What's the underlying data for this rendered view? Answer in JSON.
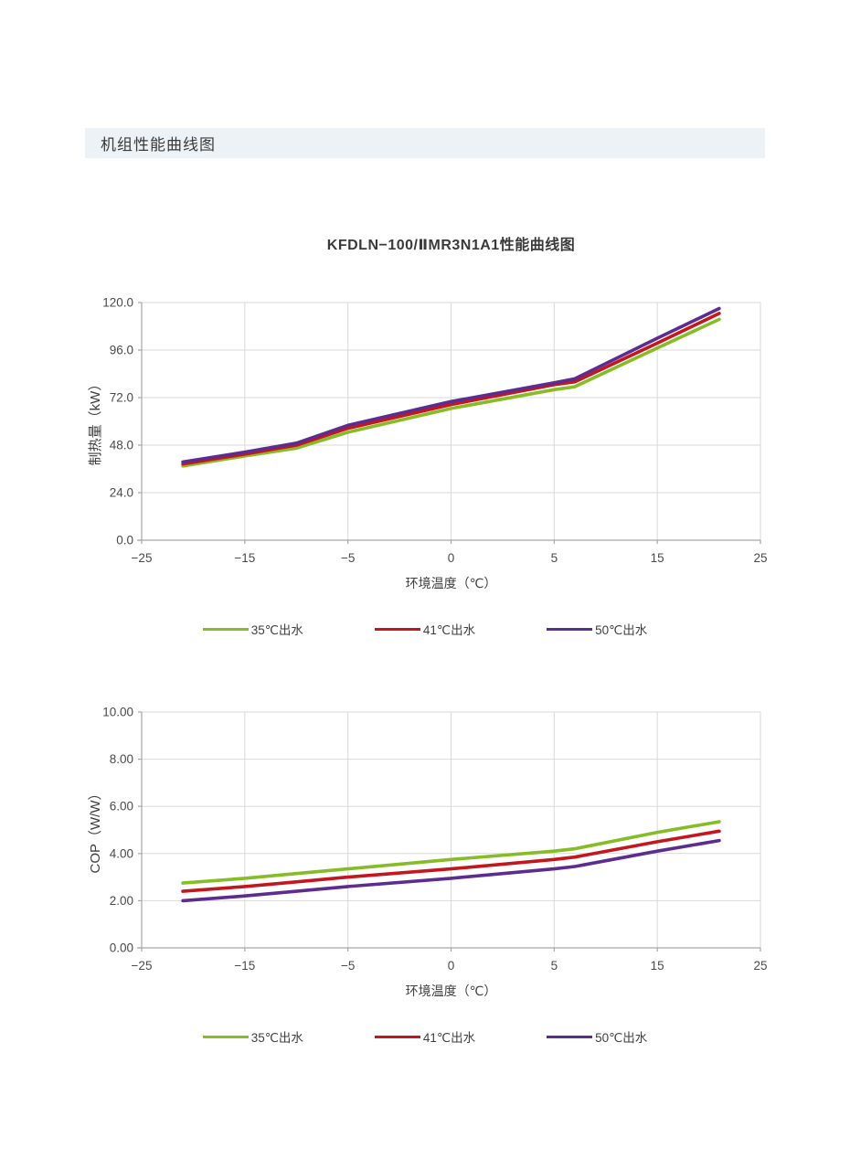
{
  "header": {
    "title": "机组性能曲线图"
  },
  "title": "KFDLN−100/ⅡMR3N1A1性能曲线图",
  "colors": {
    "header_bg": "#ecf2f5",
    "grid": "#d9d9d9",
    "axis": "#a6a6a6",
    "tick_text": "#4a4a4a",
    "axis_title_text": "#3f3f3f",
    "series_green": "#86bc25",
    "series_red": "#c4161d",
    "series_purple": "#5c2c90"
  },
  "legend": {
    "items": [
      {
        "label": "35℃出水",
        "color": "#86bc25"
      },
      {
        "label": "41℃出水",
        "color": "#c4161d"
      },
      {
        "label": "50℃出水",
        "color": "#5c2c90"
      }
    ]
  },
  "chart_data": [
    {
      "type": "line",
      "title": "KFDLN−100/ⅡMR3N1A1性能曲线图",
      "ylabel": "制热量（kW）",
      "xlabel": "环境温度（℃）",
      "ylim": [
        0,
        120
      ],
      "ystep": 24,
      "ydecimals": 1,
      "grid": true,
      "legend_position": "bottom",
      "xticks": [
        -25,
        -15,
        -5,
        0,
        5,
        15,
        25
      ],
      "x": [
        -21,
        -15,
        -10,
        -5,
        0,
        5,
        7,
        15,
        21
      ],
      "series": [
        {
          "name": "35℃出水",
          "color": "#86bc25",
          "values": [
            37.5,
            42.5,
            46.5,
            54.5,
            66.5,
            76.0,
            77.5,
            97.0,
            111.5
          ]
        },
        {
          "name": "41℃出水",
          "color": "#c4161d",
          "values": [
            38.5,
            43.5,
            48.0,
            56.5,
            68.5,
            78.5,
            80.0,
            99.5,
            114.5
          ]
        },
        {
          "name": "50℃出水",
          "color": "#5c2c90",
          "values": [
            39.5,
            44.5,
            49.0,
            58.0,
            70.0,
            79.5,
            81.5,
            102.0,
            117.0
          ]
        }
      ]
    },
    {
      "type": "line",
      "title": "",
      "ylabel": "COP（W/W）",
      "xlabel": "环境温度（℃）",
      "ylim": [
        0,
        10
      ],
      "ystep": 2,
      "ydecimals": 2,
      "grid": true,
      "legend_position": "bottom",
      "xticks": [
        -25,
        -15,
        -5,
        0,
        5,
        15,
        25
      ],
      "x": [
        -21,
        -15,
        -10,
        -5,
        0,
        5,
        7,
        15,
        21
      ],
      "series": [
        {
          "name": "35℃出水",
          "color": "#86bc25",
          "values": [
            2.75,
            2.95,
            3.15,
            3.35,
            3.75,
            4.1,
            4.2,
            4.9,
            5.35
          ]
        },
        {
          "name": "41℃出水",
          "color": "#c4161d",
          "values": [
            2.4,
            2.6,
            2.8,
            3.0,
            3.35,
            3.75,
            3.85,
            4.5,
            4.95
          ]
        },
        {
          "name": "50℃出水",
          "color": "#5c2c90",
          "values": [
            2.0,
            2.2,
            2.4,
            2.6,
            2.95,
            3.35,
            3.45,
            4.1,
            4.55
          ]
        }
      ]
    }
  ]
}
